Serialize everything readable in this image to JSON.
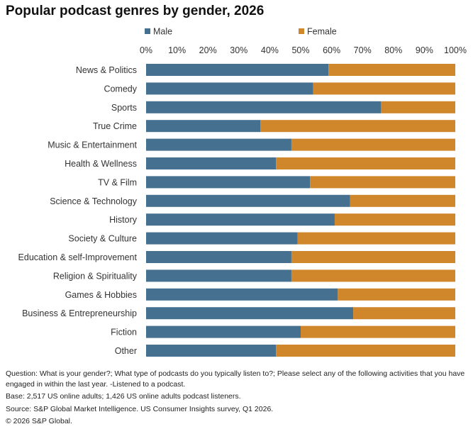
{
  "title": "Popular podcast genres by gender, 2026",
  "colors": {
    "male": "#45708f",
    "female": "#d0862a",
    "text": "#222222"
  },
  "chart_data": {
    "type": "bar",
    "orientation": "horizontal",
    "stacked": true,
    "normalized_percent": true,
    "title": "Popular podcast genres by gender, 2026",
    "legend_position": "top",
    "xlim": [
      0,
      100
    ],
    "x_ticks": [
      "0%",
      "10%",
      "20%",
      "30%",
      "40%",
      "50%",
      "60%",
      "70%",
      "80%",
      "90%",
      "100%"
    ],
    "categories": [
      "News & Politics",
      "Comedy",
      "Sports",
      "True Crime",
      "Music & Entertainment",
      "Health & Wellness",
      "TV & Film",
      "Science & Technology",
      "History",
      "Society & Culture",
      "Education & self-Improvement",
      "Religion & Spirituality",
      "Games & Hobbies",
      "Business & Entrepreneurship",
      "Fiction",
      "Other"
    ],
    "series": [
      {
        "name": "Male",
        "color": "#45708f",
        "values": [
          59,
          54,
          76,
          37,
          47,
          42,
          53,
          66,
          61,
          49,
          47,
          47,
          62,
          67,
          50,
          42
        ]
      },
      {
        "name": "Female",
        "color": "#d0862a",
        "values": [
          41,
          46,
          24,
          63,
          53,
          58,
          47,
          34,
          39,
          51,
          53,
          53,
          38,
          33,
          50,
          58
        ]
      }
    ]
  },
  "notes": {
    "question": "Question: What is your gender?; What type of podcasts do you typically listen to?; Please select any of the following activities that you have engaged in within the last year. -Listened to a podcast.",
    "base": "Base: 2,517 US online adults; 1,426 US online adults podcast listeners.",
    "source": "Source: S&P Global Market Intelligence. US Consumer Insights survey, Q1 2026.",
    "copyright": "© 2026 S&P Global."
  }
}
